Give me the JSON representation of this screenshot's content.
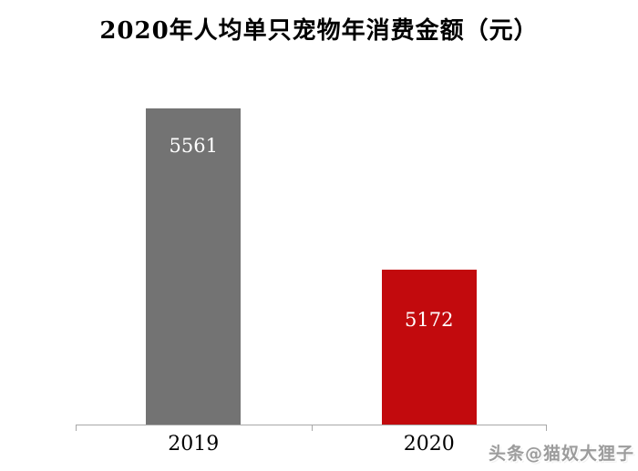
{
  "title": "2020年人均单只宠物年消费金额（元）",
  "watermark": "头条@猫奴大狸子",
  "chart_data": {
    "type": "bar",
    "title": "2020年人均单只宠物年消费金额（元）",
    "categories": [
      "2019",
      "2020"
    ],
    "values": [
      5561,
      5172
    ],
    "bar_colors": [
      "#737373",
      "#c20a0d"
    ],
    "value_label_color": "#ffffff",
    "axis_color": "#a8a8a8",
    "xlabel": "",
    "ylabel": "",
    "ylim": [
      4800,
      5650
    ],
    "grid": false,
    "legend": "none",
    "value_labels_inside_bars": true
  }
}
